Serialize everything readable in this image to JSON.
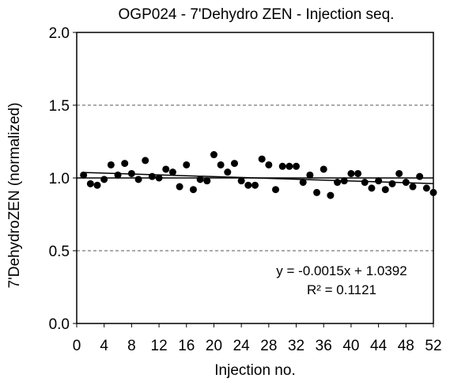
{
  "chart_data": {
    "type": "scatter",
    "title": "OGP024 - 7'Dehydro ZEN - Injection seq.",
    "xlabel": "Injection no.",
    "ylabel": "7'DehydroZEN (normalized)",
    "xlim": [
      0,
      52
    ],
    "ylim": [
      0.0,
      2.0
    ],
    "xticks": [
      0,
      4,
      8,
      12,
      16,
      20,
      24,
      28,
      32,
      36,
      40,
      44,
      48,
      52
    ],
    "yticks": [
      0.0,
      0.5,
      1.0,
      1.5,
      2.0
    ],
    "xtick_labels": [
      "0",
      "4",
      "8",
      "12",
      "16",
      "20",
      "24",
      "28",
      "32",
      "36",
      "40",
      "44",
      "48",
      "52"
    ],
    "ytick_labels": [
      "0.0",
      "0.5",
      "1.0",
      "1.5",
      "2.0"
    ],
    "grid": {
      "y_dashed_at": [
        0.5,
        1.5
      ],
      "reference_line_at": 1.0
    },
    "series": [
      {
        "marker": "circle",
        "color": "#000000",
        "x": [
          1,
          2,
          3,
          4,
          5,
          6,
          7,
          8,
          9,
          10,
          11,
          12,
          13,
          14,
          15,
          16,
          17,
          18,
          19,
          20,
          21,
          22,
          23,
          24,
          25,
          26,
          27,
          28,
          29,
          30,
          31,
          32,
          33,
          34,
          35,
          36,
          37,
          38,
          39,
          40,
          41,
          42,
          43,
          44,
          45,
          46,
          47,
          48,
          49,
          50,
          51,
          52
        ],
        "y": [
          1.02,
          0.96,
          0.95,
          0.99,
          1.09,
          1.02,
          1.1,
          1.03,
          0.99,
          1.12,
          1.01,
          1.0,
          1.06,
          1.04,
          0.94,
          1.09,
          0.92,
          0.99,
          0.98,
          1.16,
          1.09,
          1.04,
          1.1,
          0.98,
          0.95,
          0.95,
          1.13,
          1.09,
          0.92,
          1.08,
          1.08,
          1.08,
          0.97,
          1.02,
          0.9,
          1.06,
          0.88,
          0.97,
          0.98,
          1.03,
          1.03,
          0.97,
          0.93,
          0.98,
          0.92,
          0.96,
          1.03,
          0.97,
          0.94,
          1.01,
          0.93,
          0.9
        ]
      }
    ],
    "trendline": {
      "slope": -0.0015,
      "intercept": 1.0392,
      "x_range": [
        1,
        52
      ],
      "equation_label": "y = -0.0015x + 1.0392",
      "r2_label": "R² = 0.1121"
    }
  }
}
